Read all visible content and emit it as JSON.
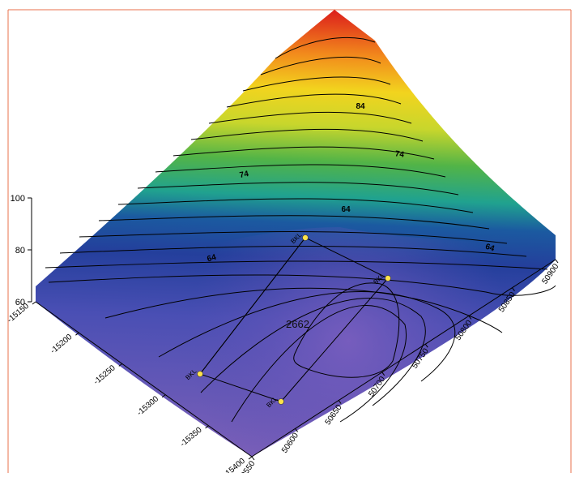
{
  "chart_data": {
    "type": "surface-3d",
    "title": "",
    "xlabel": "",
    "ylabel": "",
    "zlabel": "",
    "z_axis": {
      "ticks": [
        "60",
        "80",
        "100"
      ],
      "range": [
        60,
        100
      ]
    },
    "left_axis": {
      "ticks": [
        "-15150",
        "-15200",
        "-15250",
        "-15300",
        "-15350",
        "-15400"
      ]
    },
    "right_axis": {
      "ticks": [
        "50550",
        "50600",
        "50650",
        "50700",
        "50750",
        "50800",
        "50850",
        "50900"
      ]
    },
    "contour_labels": [
      {
        "text": "84"
      },
      {
        "text": "74"
      },
      {
        "text": "74"
      },
      {
        "text": "64"
      },
      {
        "text": "64"
      },
      {
        "text": "64"
      }
    ],
    "annotation": "2662",
    "wells": [
      {
        "label": "BKL"
      },
      {
        "label": "BKL"
      },
      {
        "label": "BKL"
      },
      {
        "label": "BKL"
      }
    ],
    "colorscale": [
      "#6a4fb0",
      "#4b50b4",
      "#2d4aa6",
      "#1b3f8c",
      "#1e7aa8",
      "#20a89a",
      "#38b15a",
      "#8cc23c",
      "#e7e224",
      "#f5a51c",
      "#ee4f1e",
      "#d91b1b"
    ]
  },
  "colors": {
    "frame": "#e8704b",
    "contour": "#000000",
    "well": "#ffe24a"
  }
}
